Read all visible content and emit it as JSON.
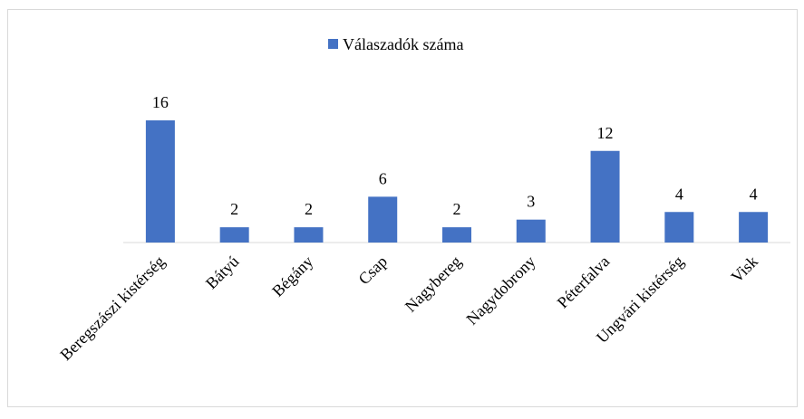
{
  "chart_data": {
    "type": "bar",
    "categories": [
      "Beregszászi kistérség",
      "Bátyú",
      "Bégány",
      "Csap",
      "Nagybereg",
      "Nagydobrony",
      "Péterfalva",
      "Ungvári kistérség",
      "Visk"
    ],
    "series": [
      {
        "name": "Válaszadók száma",
        "color": "#4472c4",
        "values": [
          16,
          2,
          2,
          6,
          2,
          3,
          12,
          4,
          4
        ]
      }
    ]
  }
}
